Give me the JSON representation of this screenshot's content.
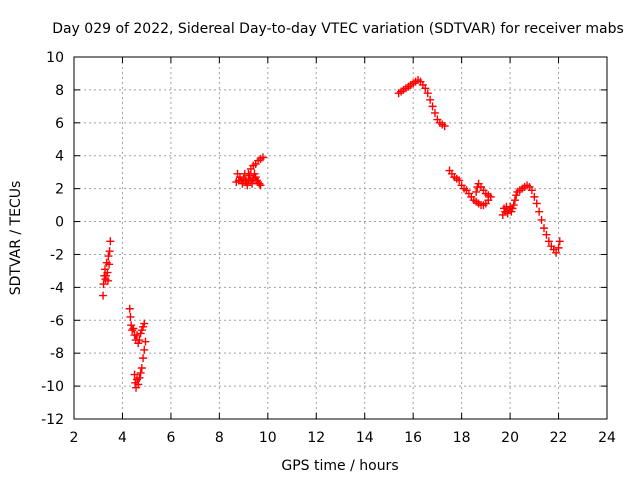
{
  "chart_data": {
    "type": "scatter",
    "title": "Day 029 of 2022, Sidereal Day-to-day VTEC variation (SDTVAR) for receiver mabs",
    "xlabel": "GPS time / hours",
    "ylabel": "SDTVAR / TECUs",
    "xlim": [
      2,
      24
    ],
    "ylim": [
      -12,
      10
    ],
    "xticks": [
      2,
      4,
      6,
      8,
      10,
      12,
      14,
      16,
      18,
      20,
      22,
      24
    ],
    "yticks": [
      -12,
      -10,
      -8,
      -6,
      -4,
      -2,
      0,
      2,
      4,
      6,
      8,
      10
    ],
    "grid": true,
    "marker": "plus",
    "series": [
      {
        "name": "SDTVAR",
        "color": "#ff0000",
        "segments": [
          [
            [
              3.2,
              -4.5
            ],
            [
              3.22,
              -3.8
            ],
            [
              3.25,
              -3.3
            ],
            [
              3.28,
              -2.9
            ],
            [
              3.3,
              -3.5
            ],
            [
              3.32,
              -3.3
            ],
            [
              3.35,
              -2.5
            ],
            [
              3.38,
              -3.1
            ],
            [
              3.4,
              -3.6
            ],
            [
              3.42,
              -2.1
            ],
            [
              3.45,
              -2.6
            ],
            [
              3.47,
              -1.8
            ],
            [
              3.5,
              -1.2
            ]
          ],
          [
            [
              4.3,
              -5.3
            ],
            [
              4.33,
              -5.8
            ],
            [
              4.36,
              -6.3
            ],
            [
              4.4,
              -6.6
            ],
            [
              4.45,
              -6.5
            ],
            [
              4.5,
              -6.9
            ],
            [
              4.55,
              -7.2
            ],
            [
              4.6,
              -6.9
            ],
            [
              4.65,
              -7.4
            ],
            [
              4.7,
              -7.2
            ],
            [
              4.75,
              -6.8
            ],
            [
              4.8,
              -6.6
            ],
            [
              4.85,
              -6.4
            ],
            [
              4.9,
              -6.2
            ]
          ],
          [
            [
              4.5,
              -9.3
            ],
            [
              4.53,
              -9.8
            ],
            [
              4.56,
              -10.1
            ],
            [
              4.6,
              -9.6
            ],
            [
              4.65,
              -9.9
            ],
            [
              4.7,
              -9.5
            ],
            [
              4.75,
              -9.2
            ],
            [
              4.8,
              -8.9
            ],
            [
              4.85,
              -8.3
            ],
            [
              4.9,
              -7.8
            ],
            [
              4.95,
              -7.3
            ]
          ],
          [
            [
              8.7,
              2.4
            ],
            [
              8.75,
              2.9
            ],
            [
              8.8,
              2.5
            ],
            [
              8.85,
              2.7
            ],
            [
              8.9,
              2.5
            ],
            [
              8.95,
              2.3
            ],
            [
              9.0,
              2.6
            ],
            [
              9.05,
              2.9
            ],
            [
              9.1,
              2.4
            ],
            [
              9.15,
              2.2
            ],
            [
              9.2,
              2.5
            ],
            [
              9.25,
              2.8
            ],
            [
              9.3,
              2.5
            ],
            [
              9.35,
              2.3
            ],
            [
              9.4,
              2.6
            ],
            [
              9.45,
              2.9
            ],
            [
              9.5,
              2.7
            ],
            [
              9.55,
              2.5
            ],
            [
              9.6,
              2.4
            ],
            [
              9.65,
              2.3
            ],
            [
              9.7,
              2.2
            ]
          ],
          [
            [
              9.1,
              2.5
            ],
            [
              9.2,
              2.9
            ],
            [
              9.3,
              3.2
            ],
            [
              9.4,
              3.4
            ],
            [
              9.5,
              3.5
            ],
            [
              9.6,
              3.7
            ],
            [
              9.7,
              3.8
            ],
            [
              9.8,
              3.9
            ]
          ],
          [
            [
              15.4,
              7.8
            ],
            [
              15.5,
              7.9
            ],
            [
              15.6,
              8.0
            ],
            [
              15.7,
              8.1
            ],
            [
              15.8,
              8.2
            ],
            [
              15.9,
              8.3
            ],
            [
              16.0,
              8.4
            ],
            [
              16.1,
              8.5
            ],
            [
              16.2,
              8.6
            ],
            [
              16.3,
              8.5
            ],
            [
              16.4,
              8.3
            ],
            [
              16.5,
              8.1
            ],
            [
              16.6,
              7.8
            ],
            [
              16.7,
              7.4
            ],
            [
              16.8,
              7.0
            ],
            [
              16.9,
              6.6
            ],
            [
              17.0,
              6.2
            ],
            [
              17.1,
              6.0
            ],
            [
              17.2,
              5.9
            ],
            [
              17.3,
              5.8
            ]
          ],
          [
            [
              17.5,
              3.1
            ],
            [
              17.6,
              2.9
            ],
            [
              17.7,
              2.7
            ],
            [
              17.8,
              2.6
            ],
            [
              17.9,
              2.5
            ],
            [
              18.0,
              2.2
            ],
            [
              18.1,
              2.0
            ],
            [
              18.2,
              1.9
            ],
            [
              18.3,
              1.7
            ],
            [
              18.4,
              1.5
            ],
            [
              18.5,
              1.3
            ],
            [
              18.6,
              1.2
            ],
            [
              18.7,
              1.1
            ],
            [
              18.8,
              1.0
            ],
            [
              18.9,
              1.0
            ],
            [
              19.0,
              1.1
            ],
            [
              19.1,
              1.3
            ]
          ],
          [
            [
              18.6,
              1.8
            ],
            [
              18.65,
              2.1
            ],
            [
              18.7,
              2.3
            ],
            [
              18.8,
              2.1
            ],
            [
              18.9,
              1.9
            ],
            [
              19.0,
              1.7
            ],
            [
              19.1,
              1.6
            ],
            [
              19.2,
              1.5
            ]
          ],
          [
            [
              19.7,
              0.4
            ],
            [
              19.75,
              0.8
            ],
            [
              19.8,
              0.6
            ],
            [
              19.85,
              0.9
            ],
            [
              19.9,
              0.5
            ],
            [
              19.95,
              0.7
            ],
            [
              20.0,
              0.9
            ],
            [
              20.05,
              0.6
            ],
            [
              20.1,
              0.8
            ],
            [
              20.15,
              1.0
            ],
            [
              20.2,
              1.3
            ],
            [
              20.25,
              1.6
            ],
            [
              20.3,
              1.8
            ],
            [
              20.4,
              1.9
            ],
            [
              20.5,
              2.0
            ],
            [
              20.6,
              2.1
            ],
            [
              20.7,
              2.2
            ],
            [
              20.8,
              2.1
            ],
            [
              20.9,
              1.9
            ],
            [
              21.0,
              1.5
            ],
            [
              21.1,
              1.1
            ],
            [
              21.2,
              0.6
            ],
            [
              21.3,
              0.1
            ],
            [
              21.4,
              -0.4
            ],
            [
              21.5,
              -0.8
            ],
            [
              21.6,
              -1.2
            ],
            [
              21.7,
              -1.5
            ],
            [
              21.8,
              -1.7
            ],
            [
              21.9,
              -1.9
            ],
            [
              22.0,
              -1.6
            ],
            [
              22.05,
              -1.2
            ]
          ]
        ]
      }
    ]
  }
}
